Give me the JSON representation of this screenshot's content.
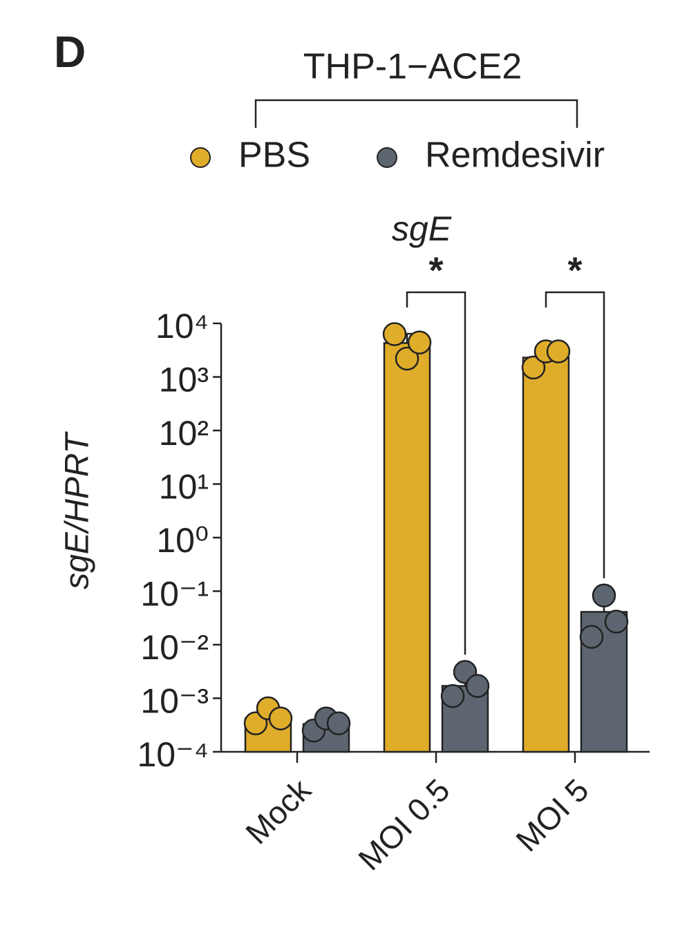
{
  "panel_label": "D",
  "chart_data": {
    "type": "bar",
    "group_label": "THP-1−ACE2",
    "title": "sgE",
    "y_label": "sgE/HPRT",
    "log_scale": true,
    "categories": [
      "Mock",
      "MOI 0.5",
      "MOI 5"
    ],
    "series": [
      {
        "name": "PBS",
        "color": "#e0ad2a",
        "values": [
          0.00042,
          4300,
          2300
        ],
        "errors": [
          0.00017,
          2100,
          850
        ],
        "points": [
          [
            0.00034,
            0.00065,
            0.00042
          ],
          [
            6300,
            2200,
            4400
          ],
          [
            1500,
            3000,
            3000
          ]
        ]
      },
      {
        "name": "Remdesivir",
        "color": "#5d6670",
        "values": [
          0.00033,
          0.0017,
          0.041
        ],
        "errors": [
          5e-05,
          0.001,
          0.036
        ],
        "points": [
          [
            0.00025,
            0.00042,
            0.00034
          ],
          [
            0.0011,
            0.0031,
            0.0017
          ],
          [
            0.014,
            0.083,
            0.027
          ]
        ]
      }
    ],
    "annotations": [
      {
        "text": "*",
        "category": 1
      },
      {
        "text": "*",
        "category": 2
      }
    ],
    "ylim": [
      0.0001,
      10000
    ],
    "yticks": [
      {
        "value": 10000,
        "label": "10⁴"
      },
      {
        "value": 1000,
        "label": "10³"
      },
      {
        "value": 100,
        "label": "10²"
      },
      {
        "value": 10,
        "label": "10¹"
      },
      {
        "value": 1,
        "label": "10⁰"
      },
      {
        "value": 0.1,
        "label": "10⁻¹"
      },
      {
        "value": 0.01,
        "label": "10⁻²"
      },
      {
        "value": 0.001,
        "label": "10⁻³"
      },
      {
        "value": 0.0001,
        "label": "10⁻⁴"
      }
    ]
  }
}
